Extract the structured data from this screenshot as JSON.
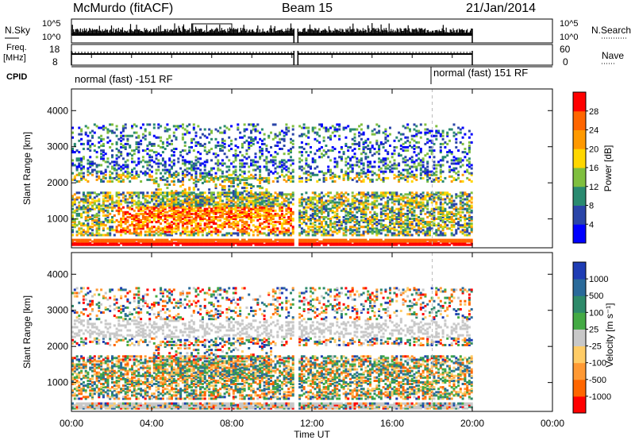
{
  "header": {
    "station": "McMurdo (fitACF)",
    "beam": "Beam 15",
    "date": "21/Jan/2014"
  },
  "noise_panel": {
    "left_label": "N.Sky",
    "right_label": "N.Search",
    "left_ticks": [
      "10^5",
      "10^0"
    ],
    "right_ticks": [
      "10^5",
      "10^0"
    ]
  },
  "freq_panel": {
    "left_label_1": "Freq.",
    "left_label_2": "[MHz]",
    "left_ticks": [
      "18",
      "8"
    ],
    "right_ticks": [
      "60",
      "0"
    ],
    "right_label": "Nave"
  },
  "cpid": {
    "label": "CPID",
    "modes": [
      "normal (fast) -151 RF",
      "normal (fast) 151 RF"
    ]
  },
  "x_axis": {
    "ticks": [
      "00:00",
      "04:00",
      "08:00",
      "12:00",
      "16:00",
      "20:00",
      "00:00"
    ],
    "label": "Time UT"
  },
  "y_axis": {
    "label": "Slant Range [km]",
    "ticks": [
      "1000",
      "2000",
      "3000",
      "4000"
    ]
  },
  "power_bar": {
    "label": "Power [dB]",
    "ticks": [
      "4",
      "8",
      "12",
      "16",
      "20",
      "24",
      "28"
    ],
    "colors": [
      "#0000ff",
      "#2a45a8",
      "#2a8a70",
      "#7fbf3f",
      "#ffd700",
      "#ff9900",
      "#ff6600",
      "#ff0000"
    ]
  },
  "velocity_bar": {
    "label": "Velocity [m s⁻¹]",
    "ticks": [
      "1000",
      "500",
      "100",
      "25",
      "-25",
      "-100",
      "-500",
      "-1000"
    ],
    "colors": [
      "#1e3cb4",
      "#2a6a9a",
      "#2e8a6a",
      "#44aa44",
      "#c8c8c8",
      "#ffcc66",
      "#ff9933",
      "#ff6600",
      "#ff0000"
    ]
  },
  "chart_data": [
    {
      "type": "heatmap",
      "title": "Power",
      "xlabel": "Time UT",
      "ylabel": "Slant Range [km]",
      "xlim": [
        0,
        24
      ],
      "ylim": [
        200,
        4600
      ],
      "colorbar_label": "Power [dB]",
      "colorbar_range": [
        0,
        32
      ],
      "data_gap_hours": [
        11.1,
        11.3
      ],
      "data_end_hour": 20
    },
    {
      "type": "heatmap",
      "title": "Velocity",
      "xlabel": "Time UT",
      "ylabel": "Slant Range [km]",
      "xlim": [
        0,
        24
      ],
      "ylim": [
        200,
        4600
      ],
      "colorbar_label": "Velocity [m s⁻¹]",
      "colorbar_range": [
        -1000,
        1000
      ],
      "data_gap_hours": [
        11.1,
        11.3
      ],
      "data_end_hour": 20
    }
  ]
}
